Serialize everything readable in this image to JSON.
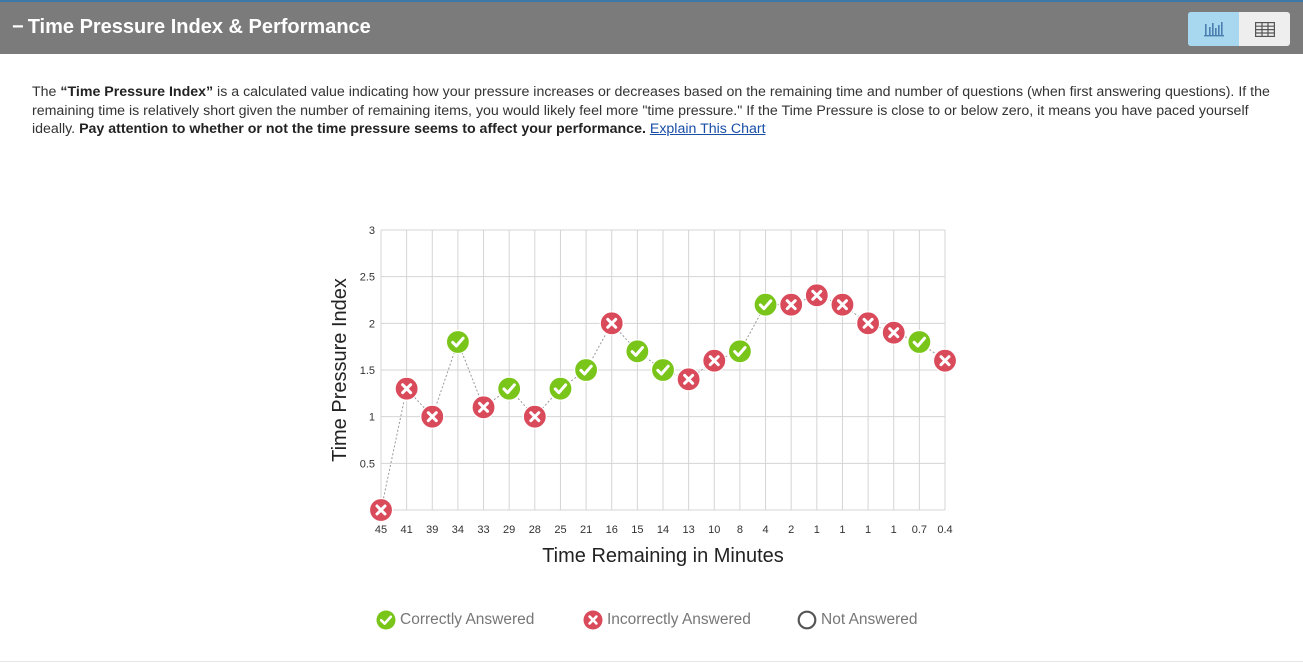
{
  "header": {
    "collapse_symbol": "−",
    "title": "Time Pressure Index & Performance",
    "view_toggle": {
      "chart_icon": "bar-chart-icon",
      "table_icon": "table-icon"
    }
  },
  "description": {
    "intro": "The ",
    "term": "“Time Pressure Index”",
    "body": " is a calculated value indicating how your pressure increases or decreases based on the remaining time and number of questions (when first answering questions). If the remaining time is relatively short given the number of remaining items, you would likely feel more \"time pressure.\" If the Time Pressure is close to or below zero, it means you have paced yourself ideally. ",
    "emphasis": "Pay attention to whether or not the time pressure seems to affect your performance.",
    "link_text": "Explain This Chart"
  },
  "colors": {
    "correct": "#7ac51a",
    "incorrect": "#d94a5a",
    "header_bg": "#7b7b7b",
    "toggle_active": "#a8d8ef"
  },
  "chart_data": {
    "type": "line",
    "xlabel": "Time Remaining in Minutes",
    "ylabel": "Time Pressure Index",
    "ylim": [
      0,
      3
    ],
    "yticks": [
      "0.5",
      "1",
      "1.5",
      "2",
      "2.5",
      "3"
    ],
    "grid": true,
    "legend_position": "bottom",
    "categories": [
      "45",
      "41",
      "39",
      "34",
      "33",
      "29",
      "28",
      "25",
      "21",
      "16",
      "15",
      "14",
      "13",
      "10",
      "8",
      "4",
      "2",
      "1",
      "1",
      "1",
      "1",
      "0.7",
      "0.4"
    ],
    "values": [
      0,
      1.3,
      1.0,
      1.8,
      1.1,
      1.3,
      1.0,
      1.3,
      1.5,
      2.0,
      1.7,
      1.5,
      1.4,
      1.6,
      1.7,
      2.2,
      2.2,
      2.3,
      2.2,
      2.0,
      1.9,
      1.8,
      1.6
    ],
    "status": [
      "incorrect",
      "incorrect",
      "incorrect",
      "correct",
      "incorrect",
      "correct",
      "incorrect",
      "correct",
      "correct",
      "incorrect",
      "correct",
      "correct",
      "incorrect",
      "incorrect",
      "correct",
      "correct",
      "incorrect",
      "incorrect",
      "incorrect",
      "incorrect",
      "incorrect",
      "correct",
      "incorrect"
    ],
    "legend": [
      {
        "label": "Correctly Answered",
        "status": "correct"
      },
      {
        "label": "Incorrectly Answered",
        "status": "incorrect"
      },
      {
        "label": "Not Answered",
        "status": "unanswered"
      }
    ]
  }
}
